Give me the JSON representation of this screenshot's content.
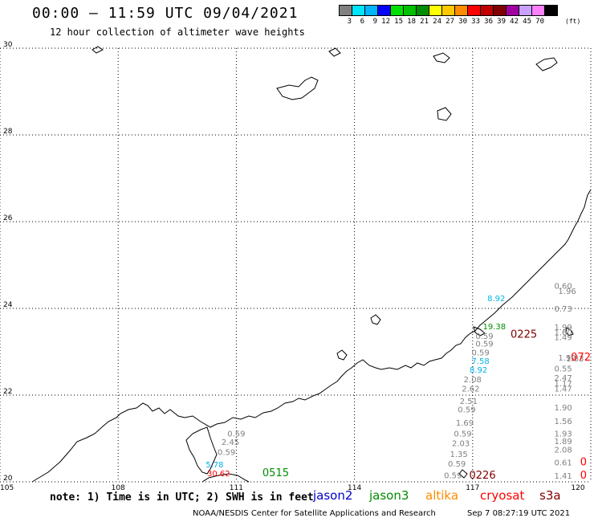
{
  "header": {
    "title": "00:00 – 11:59 UTC 09/04/2021",
    "subtitle": "12 hour collection of altimeter wave heights"
  },
  "color_scale": {
    "unit": "(ft)",
    "entries": [
      {
        "label": "3",
        "color": "#808080"
      },
      {
        "label": "6",
        "color": "#00e5ff"
      },
      {
        "label": "9",
        "color": "#00b4ff"
      },
      {
        "label": "12",
        "color": "#0000ff"
      },
      {
        "label": "15",
        "color": "#00e000"
      },
      {
        "label": "18",
        "color": "#00c000"
      },
      {
        "label": "21",
        "color": "#008c00"
      },
      {
        "label": "24",
        "color": "#ffff00"
      },
      {
        "label": "27",
        "color": "#ffc800"
      },
      {
        "label": "30",
        "color": "#ff8c00"
      },
      {
        "label": "33",
        "color": "#ff0000"
      },
      {
        "label": "36",
        "color": "#c00000"
      },
      {
        "label": "39",
        "color": "#800000"
      },
      {
        "label": "42",
        "color": "#a000a0"
      },
      {
        "label": "45",
        "color": "#c8a0ff"
      },
      {
        "label": "70",
        "color": "#ff80ff"
      },
      {
        "label": "",
        "color": "#000000"
      }
    ]
  },
  "axes": {
    "lat_labels": [
      "30",
      "28",
      "26",
      "24",
      "22",
      "20"
    ],
    "lon_labels": [
      "105",
      "108",
      "111",
      "114",
      "117",
      "120"
    ],
    "lat_range": [
      20,
      30
    ],
    "lon_range": [
      105,
      120
    ]
  },
  "observations": [
    {
      "text": "0.60",
      "lon": 119.3,
      "lat": 24.45,
      "color": "#808080"
    },
    {
      "text": "1.96",
      "lon": 119.4,
      "lat": 24.33,
      "color": "#808080"
    },
    {
      "text": "8.92",
      "lon": 117.6,
      "lat": 24.17,
      "color": "#00b4e6"
    },
    {
      "text": "0.73",
      "lon": 119.3,
      "lat": 23.93,
      "color": "#808080"
    },
    {
      "text": "1.99",
      "lon": 119.3,
      "lat": 23.5,
      "color": "#808080"
    },
    {
      "text": "1.60",
      "lon": 119.3,
      "lat": 23.38,
      "color": "#808080"
    },
    {
      "text": "1.49",
      "lon": 119.3,
      "lat": 23.27,
      "color": "#808080"
    },
    {
      "text": "19.38",
      "lon": 117.55,
      "lat": 23.52,
      "color": "#008c00"
    },
    {
      "text": "0.59",
      "lon": 117.3,
      "lat": 23.3,
      "color": "#808080"
    },
    {
      "text": "0.59",
      "lon": 117.3,
      "lat": 23.12,
      "color": "#808080"
    },
    {
      "text": "0225",
      "lon": 118.3,
      "lat": 23.32,
      "color": "#800000"
    },
    {
      "text": "0.59",
      "lon": 117.2,
      "lat": 22.92,
      "color": "#808080"
    },
    {
      "text": "1.92",
      "lon": 119.4,
      "lat": 22.8,
      "color": "#808080"
    },
    {
      "text": "1.83",
      "lon": 119.6,
      "lat": 22.78,
      "color": "#808080"
    },
    {
      "text": "072",
      "lon": 120.0,
      "lat": 22.8,
      "color": "#ff0000"
    },
    {
      "text": "7.58",
      "lon": 117.2,
      "lat": 22.72,
      "color": "#00b4e6"
    },
    {
      "text": "0.55",
      "lon": 119.3,
      "lat": 22.55,
      "color": "#808080"
    },
    {
      "text": "8.92",
      "lon": 117.15,
      "lat": 22.52,
      "color": "#00b4e6"
    },
    {
      "text": "2.47",
      "lon": 119.3,
      "lat": 22.33,
      "color": "#808080"
    },
    {
      "text": "2.08",
      "lon": 117.0,
      "lat": 22.3,
      "color": "#808080"
    },
    {
      "text": "1.17",
      "lon": 119.3,
      "lat": 22.2,
      "color": "#808080"
    },
    {
      "text": "2.62",
      "lon": 116.95,
      "lat": 22.08,
      "color": "#808080"
    },
    {
      "text": "1.47",
      "lon": 119.3,
      "lat": 22.08,
      "color": "#808080"
    },
    {
      "text": "2.51",
      "lon": 116.9,
      "lat": 21.8,
      "color": "#808080"
    },
    {
      "text": "1.90",
      "lon": 119.3,
      "lat": 21.65,
      "color": "#808080"
    },
    {
      "text": "0.59",
      "lon": 116.85,
      "lat": 21.6,
      "color": "#808080"
    },
    {
      "text": "1.69",
      "lon": 116.8,
      "lat": 21.3,
      "color": "#808080"
    },
    {
      "text": "1.56",
      "lon": 119.3,
      "lat": 21.33,
      "color": "#808080"
    },
    {
      "text": "0.59",
      "lon": 116.75,
      "lat": 21.05,
      "color": "#808080"
    },
    {
      "text": "1.93",
      "lon": 119.3,
      "lat": 21.05,
      "color": "#808080"
    },
    {
      "text": "1.89",
      "lon": 119.3,
      "lat": 20.87,
      "color": "#808080"
    },
    {
      "text": "2.03",
      "lon": 116.7,
      "lat": 20.82,
      "color": "#808080"
    },
    {
      "text": "2.08",
      "lon": 119.3,
      "lat": 20.68,
      "color": "#808080"
    },
    {
      "text": "1.35",
      "lon": 116.65,
      "lat": 20.57,
      "color": "#808080"
    },
    {
      "text": "0.61",
      "lon": 119.3,
      "lat": 20.38,
      "color": "#808080"
    },
    {
      "text": "0.59",
      "lon": 116.6,
      "lat": 20.35,
      "color": "#808080"
    },
    {
      "text": "0.59",
      "lon": 116.5,
      "lat": 20.08,
      "color": "#808080"
    },
    {
      "text": "0226",
      "lon": 117.25,
      "lat": 20.07,
      "color": "#800000"
    },
    {
      "text": "1.41",
      "lon": 119.3,
      "lat": 20.07,
      "color": "#808080"
    },
    {
      "text": "0",
      "lon": 119.9,
      "lat": 20.38,
      "color": "#ff0000"
    },
    {
      "text": "0",
      "lon": 119.9,
      "lat": 20.07,
      "color": "#ff0000"
    },
    {
      "text": "0.59",
      "lon": 111.0,
      "lat": 21.05,
      "color": "#808080"
    },
    {
      "text": "2.45",
      "lon": 110.85,
      "lat": 20.85,
      "color": "#808080"
    },
    {
      "text": "0.59",
      "lon": 110.75,
      "lat": 20.62,
      "color": "#808080"
    },
    {
      "text": "5.78",
      "lon": 110.45,
      "lat": 20.33,
      "color": "#00b4e6"
    },
    {
      "text": "30.62",
      "lon": 110.55,
      "lat": 20.13,
      "color": "#ff0000"
    },
    {
      "text": "0515",
      "lon": 112.0,
      "lat": 20.13,
      "color": "#008c00"
    }
  ],
  "note": "note: 1) Time is in UTC; 2) SWH is in feet",
  "legend": [
    {
      "label": "jason2",
      "color": "#0000c8"
    },
    {
      "label": "jason3",
      "color": "#008c00"
    },
    {
      "label": "altika",
      "color": "#ff8c00"
    },
    {
      "label": "cryosat",
      "color": "#ff0000"
    },
    {
      "label": "s3a",
      "color": "#800000"
    }
  ],
  "footer": {
    "credit": "NOAA/NESDIS Center for Satellite Applications and Research",
    "timestamp": "Sep  7 08:27:19 UTC 2021"
  }
}
